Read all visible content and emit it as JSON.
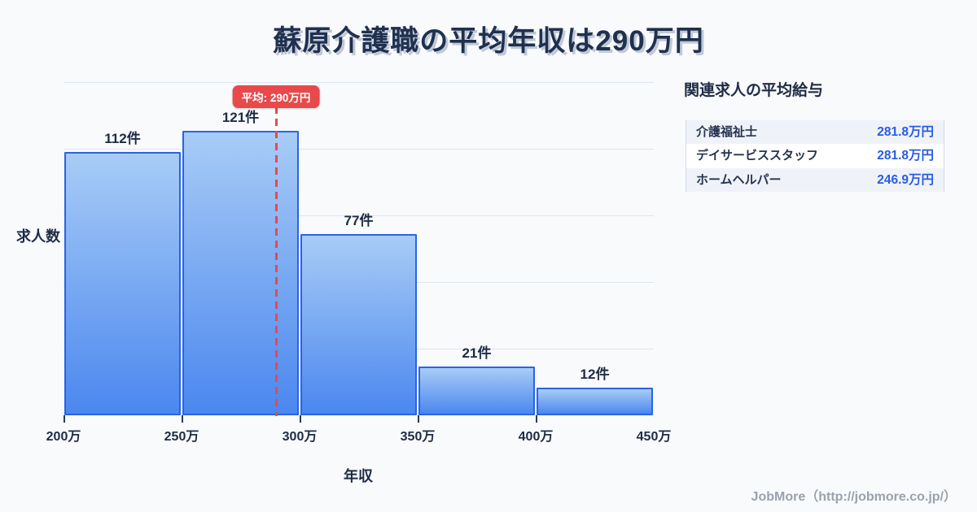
{
  "title": "蘇原介護職の平均年収は290万円",
  "chart_data": {
    "type": "bar",
    "title": "蘇原介護職の平均年収は290万円",
    "categories": [
      "200万-250万",
      "250万-300万",
      "300万-350万",
      "350万-400万",
      "400万-450万"
    ],
    "values": [
      112,
      121,
      77,
      21,
      12
    ],
    "bar_labels": [
      "112件",
      "121件",
      "77件",
      "21件",
      "12件"
    ],
    "x_tick_labels": [
      "200万",
      "250万",
      "300万",
      "350万",
      "400万",
      "450万"
    ],
    "xlabel": "年収",
    "ylabel": "求人数",
    "x_range_man_yen": [
      200,
      450
    ],
    "ylim": [
      0,
      140
    ],
    "grid": "horizontal",
    "legend": "none",
    "average_line": {
      "value_man_yen": 290,
      "label": "平均: 290万円",
      "color": "#e8494b"
    },
    "colors": {
      "bar_fill_top": "#a8ccf6",
      "bar_fill_bottom": "#4b87ef",
      "bar_border": "#2a63e4",
      "gridline": "#dfe6f0",
      "background": "#f8fafc",
      "text": "#1e2b45"
    }
  },
  "side_panel": {
    "heading": "関連求人の平均給与",
    "rows": [
      {
        "label": "介護福祉士",
        "value": "281.8万円"
      },
      {
        "label": "デイサービススタッフ",
        "value": "281.8万円"
      },
      {
        "label": "ホームヘルパー",
        "value": "246.9万円"
      }
    ],
    "value_color": "#2a5ce0"
  },
  "footer": {
    "credit": "JobMore（http://jobmore.co.jp/）"
  }
}
